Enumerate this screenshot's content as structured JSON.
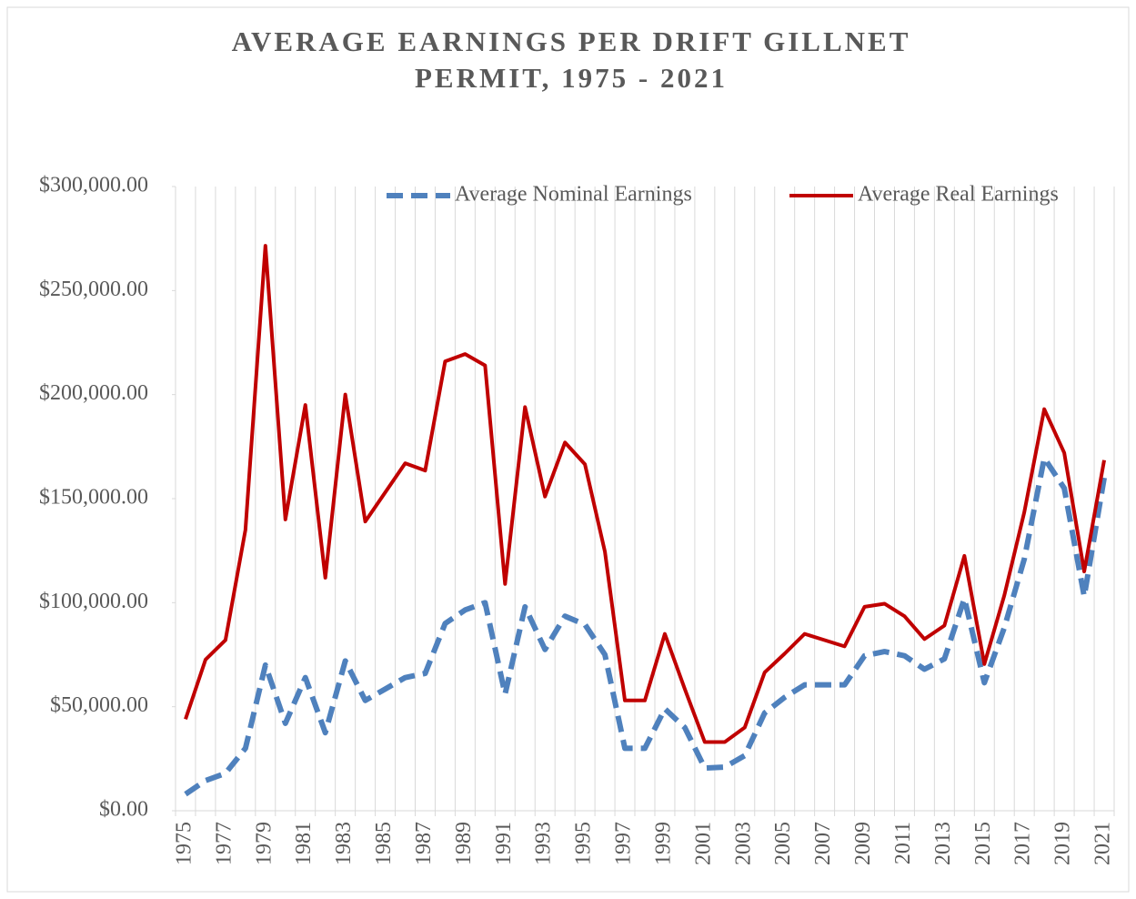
{
  "chart_data": {
    "type": "line",
    "title": [
      "AVERAGE EARNINGS PER DRIFT GILLNET",
      "PERMIT, 1975 - 2021"
    ],
    "categories": [
      "1975",
      null,
      "1977",
      null,
      "1979",
      null,
      "1981",
      null,
      "1983",
      null,
      "1985",
      null,
      "1987",
      null,
      "1989",
      null,
      "1991",
      null,
      "1993",
      null,
      "1995",
      null,
      "1997",
      null,
      "1999",
      null,
      "2001",
      null,
      "2003",
      null,
      "2005",
      null,
      "2007",
      null,
      "2009",
      null,
      "2011",
      null,
      "2013",
      null,
      "2015",
      null,
      "2017",
      null,
      "2019",
      null,
      "2021"
    ],
    "series": [
      {
        "name": "Average Nominal Earnings",
        "color": "#4f81bd",
        "dashed": true,
        "values": [
          8000,
          14500,
          18000,
          30000,
          70000,
          42000,
          64000,
          37500,
          72000,
          53000,
          58500,
          64000,
          66000,
          90000,
          96500,
          100000,
          56000,
          98000,
          77500,
          93500,
          89500,
          75000,
          30000,
          30000,
          49000,
          40000,
          20500,
          21000,
          26500,
          47000,
          54500,
          60500,
          60500,
          60500,
          74500,
          76500,
          74500,
          68000,
          73000,
          102000,
          61500,
          88000,
          121000,
          169500,
          155000,
          103000,
          160000
        ]
      },
      {
        "name": "Average Real Earnings",
        "color": "#c00000",
        "dashed": false,
        "values": [
          44000,
          72600,
          82000,
          135000,
          271500,
          140000,
          195000,
          112000,
          200000,
          139000,
          153000,
          167000,
          163500,
          216000,
          219500,
          214000,
          109000,
          194000,
          151000,
          177000,
          166500,
          124500,
          53000,
          53000,
          85000,
          58500,
          33000,
          33000,
          40000,
          66500,
          75500,
          85000,
          82000,
          79000,
          98000,
          99500,
          93500,
          82500,
          89000,
          122500,
          70500,
          103500,
          143500,
          193000,
          172000,
          115000,
          168500
        ]
      }
    ],
    "ylim": [
      0,
      300000
    ],
    "yticks": [
      {
        "value": 0,
        "label": "$0.00"
      },
      {
        "value": 50000,
        "label": "$50,000.00"
      },
      {
        "value": 100000,
        "label": "$100,000.00"
      },
      {
        "value": 150000,
        "label": "$150,000.00"
      },
      {
        "value": 200000,
        "label": "$200,000.00"
      },
      {
        "value": 250000,
        "label": "$250,000.00"
      },
      {
        "value": 300000,
        "label": "$300,000.00"
      }
    ],
    "grid": "vertical",
    "legend": "top"
  }
}
